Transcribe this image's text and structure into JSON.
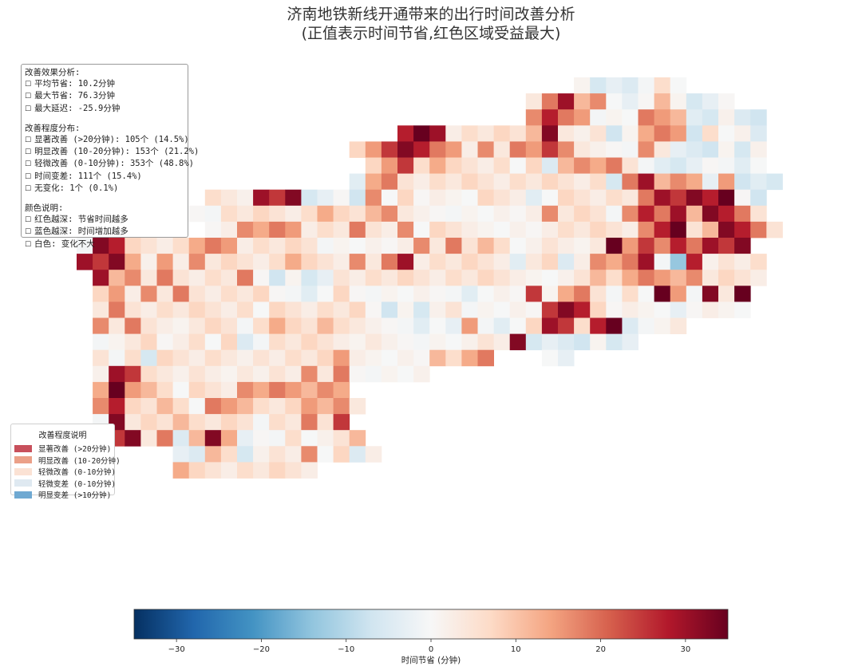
{
  "title": {
    "line1": "济南地铁新线开通带来的出行时间改善分析",
    "line2": "(正值表示时间节省,红色区域受益最大)"
  },
  "info": {
    "section1": "改善效果分析:",
    "avg": "平均节省: 10.2分钟",
    "max": "最大节省: 76.3分钟",
    "delay": "最大延迟: -25.9分钟",
    "section2": "改善程度分布:",
    "d1": "显著改善 (>20分钟): 105个 (14.5%)",
    "d2": "明显改善 (10-20分钟): 153个 (21.2%)",
    "d3": "轻微改善 (0-10分钟): 353个 (48.8%)",
    "d4": "时间变差: 111个 (15.4%)",
    "d5": "无变化: 1个 (0.1%)",
    "section3": "颜色说明:",
    "c1": "红色越深: 节省时间越多",
    "c2": "蓝色越深: 时间增加越多",
    "c3": "白色: 变化不大"
  },
  "legend": {
    "title": "改善程度说明",
    "items": [
      {
        "label": "显著改善 (>20分钟)",
        "color": "#c8505c"
      },
      {
        "label": "明显改善 (10-20分钟)",
        "color": "#eba088"
      },
      {
        "label": "轻微改善 (0-10分钟)",
        "color": "#fbe2d4"
      },
      {
        "label": "轻微变差 (0-10分钟)",
        "color": "#dfe9f1"
      },
      {
        "label": "明显变差 (>10分钟)",
        "color": "#6fa9d2"
      }
    ]
  },
  "colorbar": {
    "label": "时间节省 (分钟)",
    "min": -35,
    "max": 35,
    "ticks": [
      -30,
      -20,
      -10,
      0,
      10,
      20,
      30
    ],
    "colormap": "RdBu_r"
  },
  "chart_data": {
    "type": "heatmap",
    "grid_origin": [
      96,
      97
    ],
    "cell": [
      20.1,
      20.1
    ],
    "value_range": [
      -35,
      35
    ],
    "notes": "values in minutes saved; s = strong saving (~30), m = moderate (~15), l = light (~5), n = near zero, b = slight worsening (~-5), B = strong worsening (~-15)",
    "rows": [
      "...............................nbbbnln.....",
      "............................lmsmmnbnmnbbn..",
      "............................msmmnnnmmmbbnbb",
      "....................ssslllllmslnlbnmmmblnnb",
      ".................lmsssmmlmlmmsmlnnnmlbbbnbn",
      "..................lmslmllllnlbmmmmlnbbbnnbn",
      ".................bmmlllllllllllllbmsmmmbmbbb",
      "........llnsssbbnbmnlnlnnlllbnlllllmsssssnb",
      ".......nnllllllmllmmlnnnnnnnlmlllnmsmsmssml",
      "........nlmmmmlllmllmnlllnnnnllllllmsslmssml",
      "nssllllmmmlllllnnnnnlmlmlmlnnllnlsmsmsmsss.",
      "sssmnmlmlllllmlllmlmsllllllbllblmmmsnBsnlll",
      ".smmlmllllmnbnbbllllllllllllnnnlmlmmmmmllll",
      ".lmlmlmlllllnnbnlnnnnnnnbnnnsnmmlnlnsmnsls",
      ".lmllllllllnllllllnbnbnlnnnnnssslnlnnbnlnn",
      ".mlmllnlllnlmllmllnnnbnbmnbnlsslssbnnl.",
      ".nnllnllnlbnlllllnlnnnnnnllsbbbbnbb",
      ".lnlblllllnlllllmlnnnnmlmm...nb",
      ".nssllnllnlnllmlmnnnnn",
      ".msmmlnlllmmmmmmm",
      ".msllmlnmmmlllmmml",
      ".nslllmllllnllmls",
      "..sslmbmsmbnnlnnlm",
      "......bbmlbnllmnlbl",
      "......mllllllll"
    ]
  }
}
